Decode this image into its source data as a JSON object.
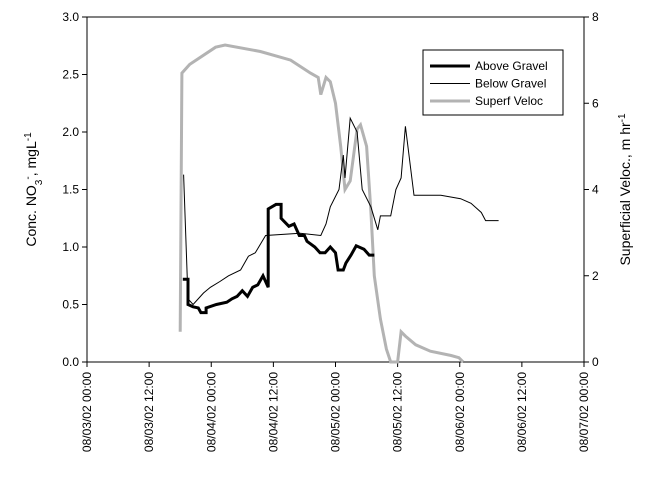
{
  "chart_data": {
    "type": "line",
    "ylabel": [
      {
        "text": "Conc. NO"
      },
      {
        "text": "3",
        "shift": "sub"
      },
      {
        "text": "-",
        "shift": "super"
      },
      {
        "text": ", mgL"
      },
      {
        "text": "-1",
        "shift": "super"
      }
    ],
    "y2label": [
      {
        "text": "Superficial Veloc., m hr"
      },
      {
        "text": "-1",
        "shift": "super"
      }
    ],
    "xlim": [
      "08/03/02 00:00",
      "08/07/02 00:00"
    ],
    "xticks": [
      "08/03/02 00:00",
      "08/03/02 12:00",
      "08/04/02 00:00",
      "08/04/02 12:00",
      "08/05/02 00:00",
      "08/05/02 12:00",
      "08/06/02 00:00",
      "08/06/02 12:00",
      "08/07/02 00:00"
    ],
    "ylim": [
      0,
      3
    ],
    "yticks": [
      {
        "value": 0,
        "label": "0.0"
      },
      {
        "value": 0.5,
        "label": "0.5"
      },
      {
        "value": 1,
        "label": "1.0"
      },
      {
        "value": 1.5,
        "label": "1.5"
      },
      {
        "value": 2,
        "label": "2.0"
      },
      {
        "value": 2.5,
        "label": "2.5"
      },
      {
        "value": 3,
        "label": "3.0"
      }
    ],
    "y2lim": [
      0,
      8
    ],
    "y2ticks": [
      0,
      2,
      4,
      6,
      8
    ],
    "legend": "upper right",
    "series": [
      {
        "name": "Above Gravel",
        "color": "#000000",
        "width": 3,
        "x": [
          "08/03/02 18:30",
          "08/03/02 19:30",
          "08/03/02 19:30",
          "08/03/02 20:30",
          "08/03/02 21:30",
          "08/03/02 22:00",
          "08/03/02 23:00",
          "08/03/02 23:00",
          "08/04/02 01:00",
          "08/04/02 03:00",
          "08/04/02 04:00",
          "08/04/02 05:00",
          "08/04/02 06:00",
          "08/04/02 07:00",
          "08/04/02 08:00",
          "08/04/02 09:00",
          "08/04/02 10:00",
          "08/04/02 11:00",
          "08/04/02 11:00",
          "08/04/02 12:30",
          "08/04/02 13:30",
          "08/04/02 13:30",
          "08/04/02 15:00",
          "08/04/02 16:00",
          "08/04/02 17:00",
          "08/04/02 18:00",
          "08/04/02 18:30",
          "08/04/02 20:00",
          "08/04/02 21:00",
          "08/04/02 22:00",
          "08/04/02 23:00",
          "08/05/02 00:00",
          "08/05/02 00:30",
          "08/05/02 01:30",
          "08/05/02 02:00",
          "08/05/02 03:00",
          "08/05/02 04:00",
          "08/05/02 05:30",
          "08/05/02 06:30",
          "08/05/02 07:30"
        ],
        "values": [
          0.72,
          0.72,
          0.5,
          0.48,
          0.47,
          0.43,
          0.43,
          0.47,
          0.5,
          0.52,
          0.55,
          0.57,
          0.62,
          0.57,
          0.65,
          0.67,
          0.75,
          0.65,
          1.33,
          1.37,
          1.37,
          1.25,
          1.18,
          1.2,
          1.1,
          1.1,
          1.05,
          1.0,
          0.95,
          0.95,
          1.0,
          0.95,
          0.8,
          0.8,
          0.86,
          0.93,
          1.01,
          0.98,
          0.93,
          0.93
        ]
      },
      {
        "name": "Below Gravel",
        "color": "#000000",
        "width": 1,
        "x": [
          "08/03/02 18:40",
          "08/03/02 19:30",
          "08/03/02 20:30",
          "08/03/02 22:30",
          "08/03/02 23:50",
          "08/04/02 01:40",
          "08/04/02 03:20",
          "08/04/02 05:40",
          "08/04/02 07:10",
          "08/04/02 08:30",
          "08/04/02 10:30",
          "08/04/02 17:10",
          "08/04/02 21:10",
          "08/04/02 22:10",
          "08/04/02 23:00",
          "08/05/02 00:40",
          "08/05/02 01:30",
          "08/05/02 01:50",
          "08/05/02 02:50",
          "08/05/02 04:10",
          "08/05/02 05:10",
          "08/05/02 06:50",
          "08/05/02 08:10",
          "08/05/02 08:40",
          "08/05/02 10:40",
          "08/05/02 11:40",
          "08/05/02 12:40",
          "08/05/02 13:30",
          "08/05/02 15:10",
          "08/05/02 20:20",
          "08/06/02 00:10",
          "08/06/02 02:10",
          "08/06/02 04:10",
          "08/06/02 05:00",
          "08/06/02 07:30"
        ],
        "values": [
          1.63,
          0.55,
          0.5,
          0.6,
          0.65,
          0.7,
          0.75,
          0.8,
          0.92,
          0.95,
          1.1,
          1.12,
          1.1,
          1.2,
          1.35,
          1.5,
          1.8,
          1.6,
          2.12,
          2.0,
          1.5,
          1.35,
          1.15,
          1.27,
          1.27,
          1.5,
          1.6,
          2.05,
          1.45,
          1.45,
          1.42,
          1.38,
          1.3,
          1.23,
          1.23
        ]
      },
      {
        "name": "Superf Veloc",
        "color": "#b3b3b3",
        "width": 3,
        "axis": "y2",
        "x": [
          "08/03/02 18:00",
          "08/03/02 18:20",
          "08/03/02 19:50",
          "08/04/02 00:50",
          "08/04/02 02:40",
          "08/04/02 09:30",
          "08/04/02 15:20",
          "08/04/02 19:10",
          "08/04/02 20:40",
          "08/04/02 21:10",
          "08/04/02 22:10",
          "08/04/02 23:00",
          "08/05/02 00:00",
          "08/05/02 01:00",
          "08/05/02 01:50",
          "08/05/02 02:50",
          "08/05/02 04:10",
          "08/05/02 04:50",
          "08/05/02 06:00",
          "08/05/02 06:50",
          "08/05/02 07:30",
          "08/05/02 08:40",
          "08/05/02 09:50",
          "08/05/02 10:40",
          "08/05/02 12:00",
          "08/05/02 12:40",
          "08/05/02 13:30",
          "08/05/02 15:30",
          "08/05/02 18:20",
          "08/05/02 22:20",
          "08/05/02 23:50",
          "08/06/02 00:40"
        ],
        "values": [
          0.7,
          6.7,
          6.9,
          7.3,
          7.35,
          7.2,
          7.0,
          6.7,
          6.6,
          6.2,
          6.6,
          6.5,
          6.0,
          5.0,
          4.0,
          4.2,
          5.4,
          5.5,
          5.0,
          3.5,
          2.0,
          1.0,
          0.3,
          0,
          0,
          0.7,
          0.6,
          0.4,
          0.25,
          0.15,
          0.1,
          0
        ]
      }
    ]
  }
}
